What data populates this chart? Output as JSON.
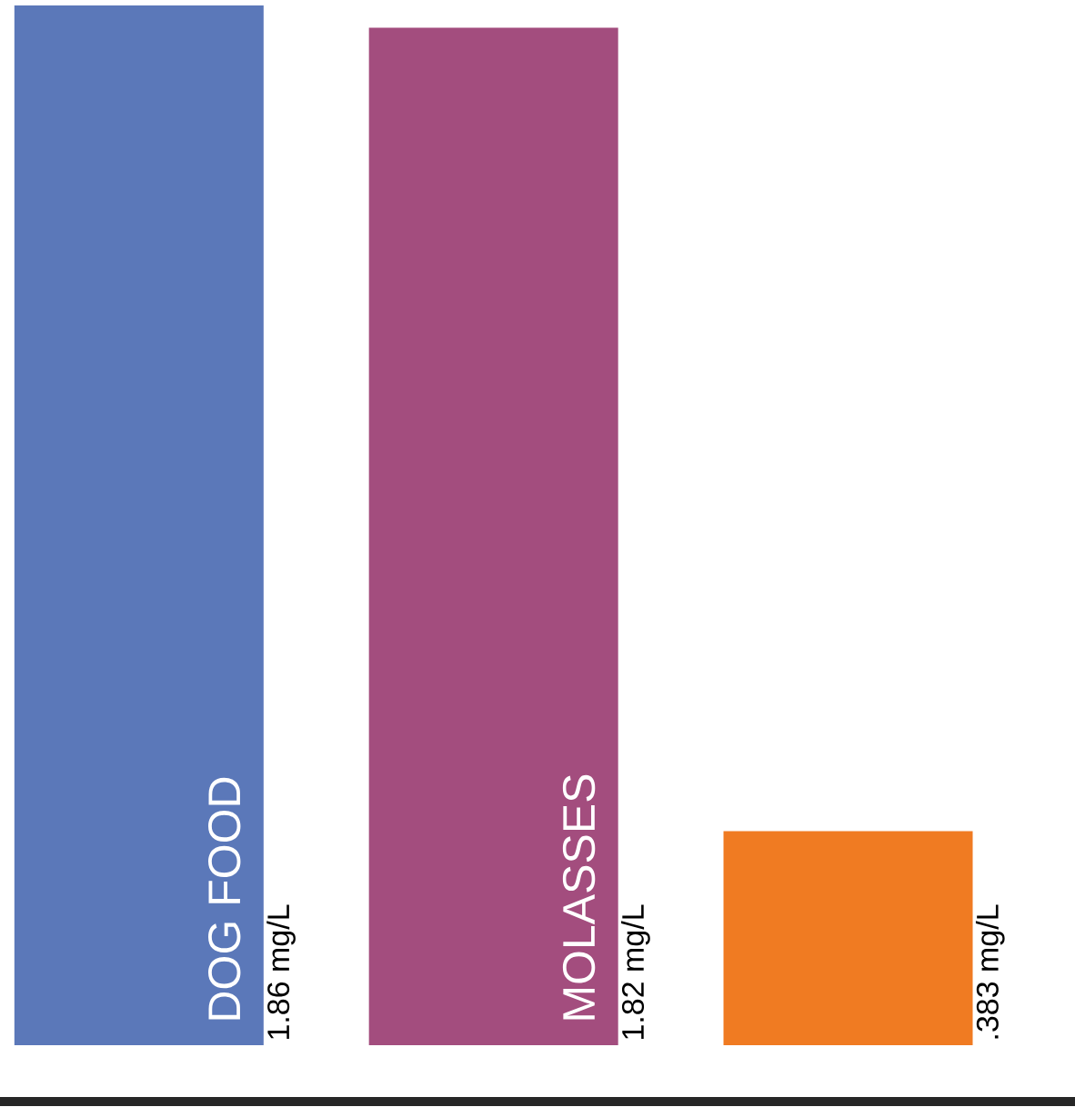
{
  "chart_data": {
    "type": "bar",
    "categories": [
      "DOG FOOD",
      "MOLASSES",
      null
    ],
    "values": [
      1.86,
      1.82,
      0.383
    ],
    "colors": [
      "#5b78b9",
      "#a34d7e",
      "#f07b22"
    ],
    "value_labels": [
      "1.86 mg/L",
      "1.82 mg/L",
      ".383 mg/L"
    ]
  }
}
